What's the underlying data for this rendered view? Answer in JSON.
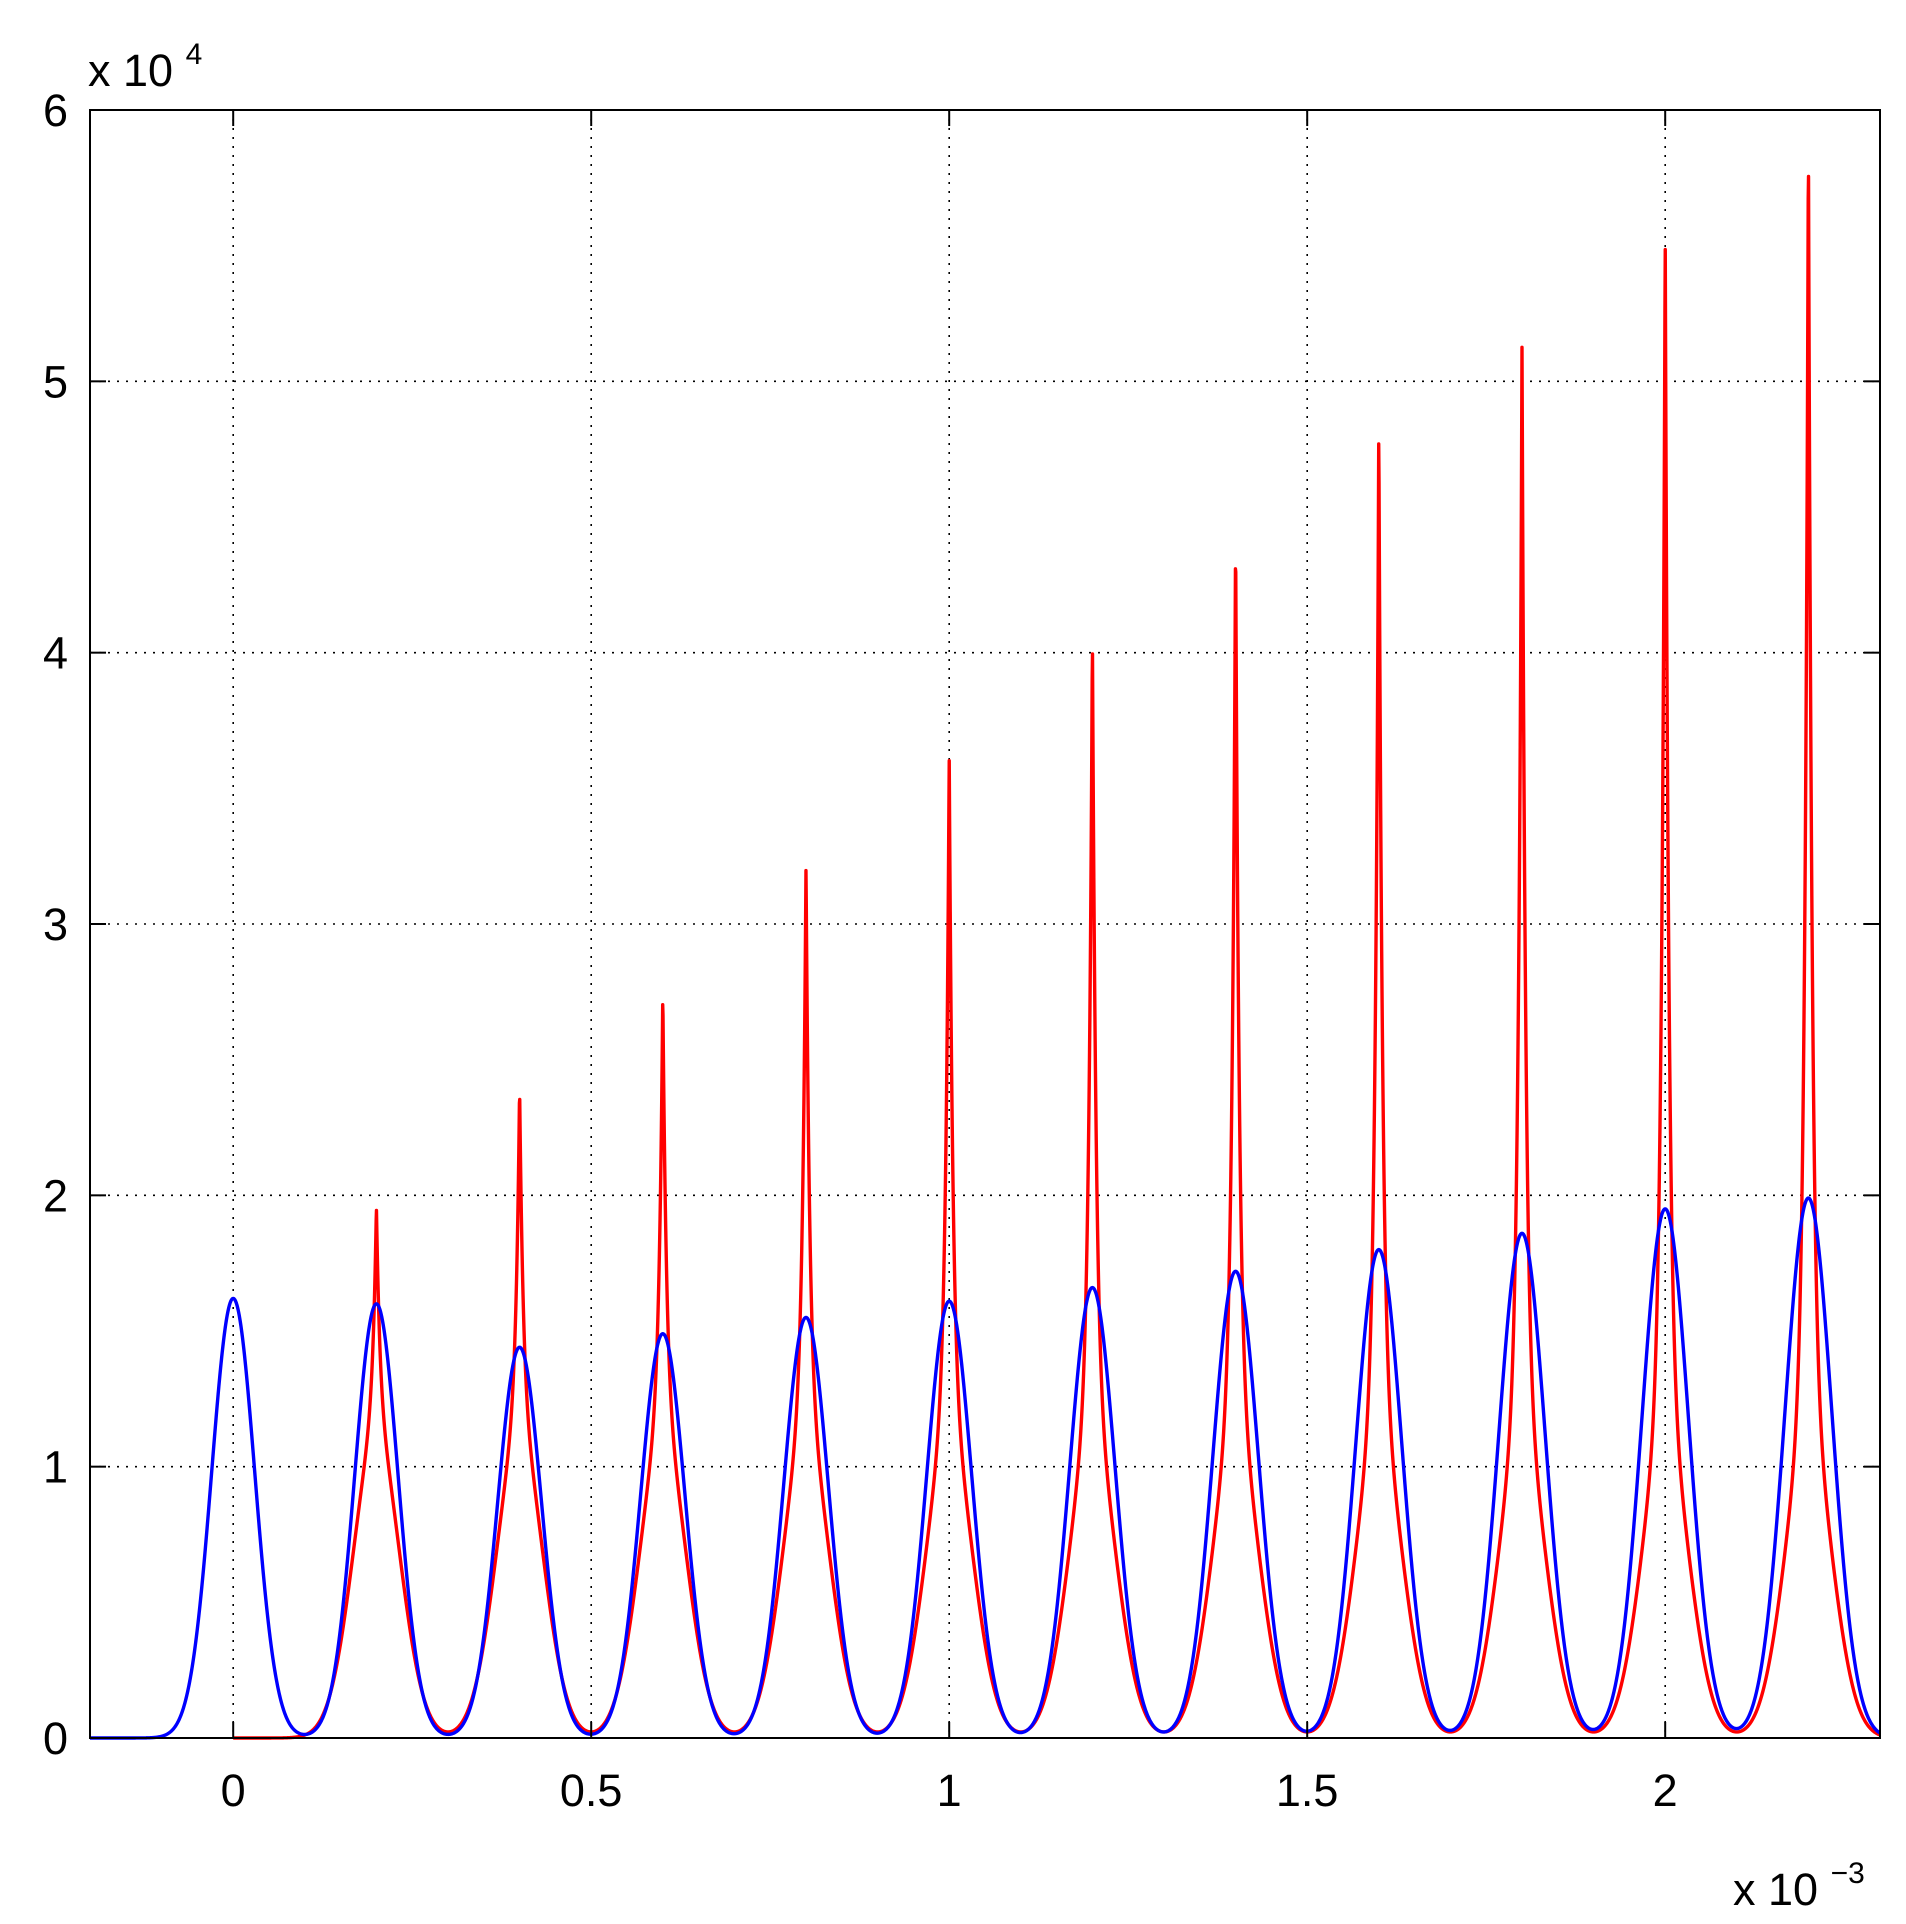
{
  "chart_data": {
    "type": "line",
    "x_multiplier": {
      "base": "x 10",
      "exponent": "−3"
    },
    "y_multiplier": {
      "base": "x 10",
      "exponent": "4"
    },
    "xlim": [
      -0.2,
      2.3
    ],
    "ylim": [
      0,
      6
    ],
    "x_ticks": [
      0,
      0.5,
      1,
      1.5,
      2
    ],
    "x_tick_labels": [
      "0",
      "0.5",
      "1",
      "1.5",
      "2"
    ],
    "y_ticks": [
      0,
      1,
      2,
      3,
      4,
      5,
      6
    ],
    "y_tick_labels": [
      "0",
      "1",
      "2",
      "3",
      "4",
      "5",
      "6"
    ],
    "grid": true,
    "series": [
      {
        "color": "#ff0000",
        "peaks": [
          {
            "x": 0.2,
            "y": 1.96
          },
          {
            "x": 0.4,
            "y": 2.4
          },
          {
            "x": 0.6,
            "y": 2.75
          },
          {
            "x": 0.8,
            "y": 3.22
          },
          {
            "x": 1.0,
            "y": 3.62
          },
          {
            "x": 1.2,
            "y": 4.07
          },
          {
            "x": 1.4,
            "y": 4.44
          },
          {
            "x": 1.6,
            "y": 4.85
          },
          {
            "x": 1.8,
            "y": 5.14
          },
          {
            "x": 2.0,
            "y": 5.55
          },
          {
            "x": 2.2,
            "y": 5.91
          }
        ]
      },
      {
        "color": "#0000ff",
        "peaks": [
          {
            "x": 0.0,
            "y": 1.62
          },
          {
            "x": 0.2,
            "y": 1.6
          },
          {
            "x": 0.4,
            "y": 1.44
          },
          {
            "x": 0.6,
            "y": 1.49
          },
          {
            "x": 0.8,
            "y": 1.55
          },
          {
            "x": 1.0,
            "y": 1.61
          },
          {
            "x": 1.2,
            "y": 1.66
          },
          {
            "x": 1.4,
            "y": 1.72
          },
          {
            "x": 1.6,
            "y": 1.8
          },
          {
            "x": 1.8,
            "y": 1.86
          },
          {
            "x": 2.0,
            "y": 1.95
          },
          {
            "x": 2.2,
            "y": 1.99
          }
        ]
      }
    ]
  }
}
